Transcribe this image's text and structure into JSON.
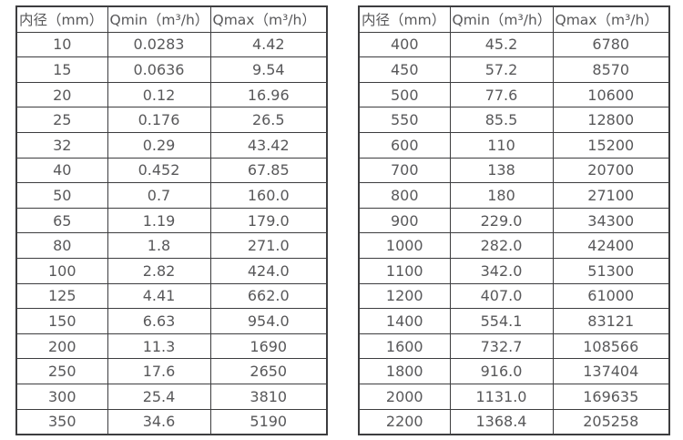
{
  "tables": [
    {
      "name": "flow-range-table-small-diameters",
      "headers": [
        "内径（mm）",
        "Qmin（m³/h）",
        "Qmax（m³/h）"
      ],
      "rows": [
        [
          "10",
          "0.0283",
          "4.42"
        ],
        [
          "15",
          "0.0636",
          "9.54"
        ],
        [
          "20",
          "0.12",
          "16.96"
        ],
        [
          "25",
          "0.176",
          "26.5"
        ],
        [
          "32",
          "0.29",
          "43.42"
        ],
        [
          "40",
          "0.452",
          "67.85"
        ],
        [
          "50",
          "0.7",
          "160.0"
        ],
        [
          "65",
          "1.19",
          "179.0"
        ],
        [
          "80",
          "1.8",
          "271.0"
        ],
        [
          "100",
          "2.82",
          "424.0"
        ],
        [
          "125",
          "4.41",
          "662.0"
        ],
        [
          "150",
          "6.63",
          "954.0"
        ],
        [
          "200",
          "11.3",
          "1690"
        ],
        [
          "250",
          "17.6",
          "2650"
        ],
        [
          "300",
          "25.4",
          "3810"
        ],
        [
          "350",
          "34.6",
          "5190"
        ]
      ]
    },
    {
      "name": "flow-range-table-large-diameters",
      "headers": [
        "内径（mm）",
        "Qmin（m³/h）",
        "Qmax（m³/h）"
      ],
      "rows": [
        [
          "400",
          "45.2",
          "6780"
        ],
        [
          "450",
          "57.2",
          "8570"
        ],
        [
          "500",
          "77.6",
          "10600"
        ],
        [
          "550",
          "85.5",
          "12800"
        ],
        [
          "600",
          "110",
          "15200"
        ],
        [
          "700",
          "138",
          "20700"
        ],
        [
          "800",
          "180",
          "27100"
        ],
        [
          "900",
          "229.0",
          "34300"
        ],
        [
          "1000",
          "282.0",
          "42400"
        ],
        [
          "1100",
          "342.0",
          "51300"
        ],
        [
          "1200",
          "407.0",
          "61000"
        ],
        [
          "1400",
          "554.1",
          "83121"
        ],
        [
          "1600",
          "732.7",
          "108566"
        ],
        [
          "1800",
          "916.0",
          "137404"
        ],
        [
          "2000",
          "1131.0",
          "169635"
        ],
        [
          "2200",
          "1368.4",
          "205258"
        ]
      ]
    },
    {
      "colors": {
        "text": "#58585a",
        "border": "#3d3d3f",
        "background": "#ffffff"
      }
    }
  ]
}
